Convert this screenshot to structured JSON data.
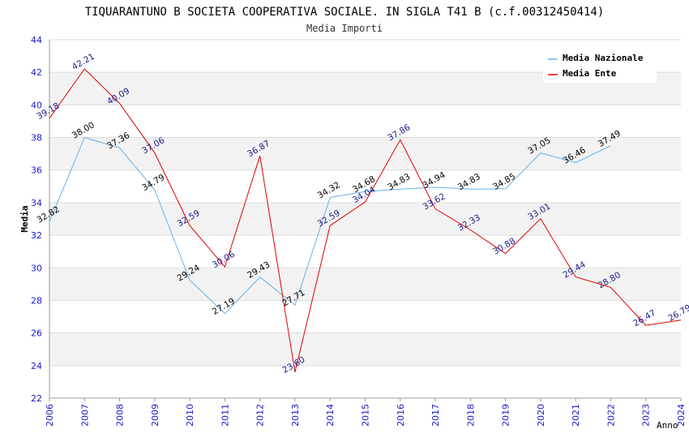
{
  "chart_data": {
    "type": "line",
    "title": "TIQUARANTUNO B SOCIETA COOPERATIVA SOCIALE. IN SIGLA T41 B (c.f.00312450414)",
    "subtitle": "Media Importi",
    "xlabel": "Anno",
    "ylabel": "Media",
    "ylim": [
      22,
      44
    ],
    "yticks": [
      22,
      24,
      26,
      28,
      30,
      32,
      34,
      36,
      38,
      40,
      42,
      44
    ],
    "x": [
      "2006",
      "2007",
      "2008",
      "2009",
      "2010",
      "2011",
      "2012",
      "2013",
      "2014",
      "2015",
      "2016",
      "2017",
      "2018",
      "2019",
      "2020",
      "2021",
      "2022",
      "2023",
      "2024"
    ],
    "series": [
      {
        "name": "Media Nazionale",
        "color": "#6aaee8",
        "values": [
          32.82,
          38.0,
          37.36,
          34.79,
          29.24,
          27.19,
          29.43,
          27.71,
          34.32,
          34.68,
          34.83,
          34.94,
          34.83,
          34.85,
          37.05,
          36.46,
          37.49,
          null,
          null
        ],
        "labels": [
          "32.82",
          "38.00",
          "37.36",
          "34.79",
          "29.24",
          "27.19",
          "29.43",
          "27.71",
          "34.32",
          "34.68",
          "34.83",
          "34.94",
          "34.83",
          "34.85",
          "37.05",
          "36.46",
          "37.49",
          null,
          null
        ]
      },
      {
        "name": "Media Ente",
        "color": "#dd0000",
        "values": [
          39.18,
          42.21,
          40.09,
          37.06,
          32.59,
          30.06,
          36.87,
          23.6,
          32.59,
          34.04,
          37.86,
          33.62,
          32.33,
          30.88,
          33.01,
          29.44,
          28.8,
          26.47,
          26.79
        ],
        "labels": [
          "39.18",
          "42.21",
          "40.09",
          "37.06",
          "32.59",
          "30.06",
          "36.87",
          "23.60",
          "32.59",
          "34.04",
          "37.86",
          "33.62",
          "32.33",
          "30.88",
          "33.01",
          "29.44",
          "28.80",
          "26.47",
          "26.79"
        ]
      }
    ],
    "legend": "top-right",
    "grid": true
  }
}
